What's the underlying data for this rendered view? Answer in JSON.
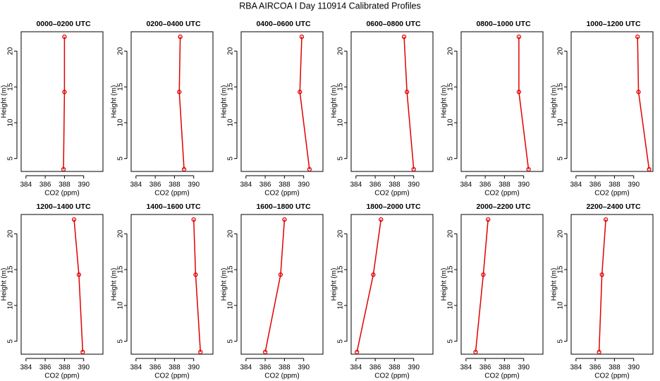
{
  "title": "RBA AIRCOA I  Day 110914  Calibrated Profiles",
  "chart_data": [
    {
      "type": "line",
      "title": "0000–0200 UTC",
      "xlabel": "CO2 (ppm)",
      "ylabel": "Height (m)",
      "color": "#e00000",
      "x": [
        387.9,
        388.0,
        388.0
      ],
      "y": [
        3.5,
        14.3,
        22.0
      ],
      "xlim": [
        383.5,
        392
      ],
      "ylim": [
        3.2,
        22.7
      ],
      "xticks": [
        384,
        386,
        388,
        390
      ],
      "yticks": [
        5,
        10,
        15,
        20
      ]
    },
    {
      "type": "line",
      "title": "0200–0400 UTC",
      "xlabel": "CO2 (ppm)",
      "ylabel": "Height (m)",
      "color": "#e00000",
      "x": [
        389.0,
        388.5,
        388.6
      ],
      "y": [
        3.5,
        14.3,
        22.0
      ],
      "xlim": [
        383.5,
        392
      ],
      "ylim": [
        3.2,
        22.7
      ],
      "xticks": [
        384,
        386,
        388,
        390
      ],
      "yticks": [
        5,
        10,
        15,
        20
      ]
    },
    {
      "type": "line",
      "title": "0400–0600 UTC",
      "xlabel": "CO2 (ppm)",
      "ylabel": "Height (m)",
      "color": "#e00000",
      "x": [
        390.6,
        389.6,
        389.8
      ],
      "y": [
        3.5,
        14.3,
        22.0
      ],
      "xlim": [
        383.5,
        392
      ],
      "ylim": [
        3.2,
        22.7
      ],
      "xticks": [
        384,
        386,
        388,
        390
      ],
      "yticks": [
        5,
        10,
        15,
        20
      ]
    },
    {
      "type": "line",
      "title": "0600–0800 UTC",
      "xlabel": "CO2 (ppm)",
      "ylabel": "Height (m)",
      "color": "#e00000",
      "x": [
        390.0,
        389.3,
        389.0
      ],
      "y": [
        3.5,
        14.3,
        22.0
      ],
      "xlim": [
        383.5,
        392
      ],
      "ylim": [
        3.2,
        22.7
      ],
      "xticks": [
        384,
        386,
        388,
        390
      ],
      "yticks": [
        5,
        10,
        15,
        20
      ]
    },
    {
      "type": "line",
      "title": "0800–1000 UTC",
      "xlabel": "CO2 (ppm)",
      "ylabel": "Height (m)",
      "color": "#e00000",
      "x": [
        390.5,
        389.5,
        389.5
      ],
      "y": [
        3.5,
        14.3,
        22.0
      ],
      "xlim": [
        383.5,
        392
      ],
      "ylim": [
        3.2,
        22.7
      ],
      "xticks": [
        384,
        386,
        388,
        390
      ],
      "yticks": [
        5,
        10,
        15,
        20
      ]
    },
    {
      "type": "line",
      "title": "1000–1200 UTC",
      "xlabel": "CO2 (ppm)",
      "ylabel": "Height (m)",
      "color": "#e00000",
      "x": [
        391.6,
        390.5,
        390.4
      ],
      "y": [
        3.5,
        14.3,
        22.0
      ],
      "xlim": [
        383.5,
        392
      ],
      "ylim": [
        3.2,
        22.7
      ],
      "xticks": [
        384,
        386,
        388,
        390
      ],
      "yticks": [
        5,
        10,
        15,
        20
      ]
    },
    {
      "type": "line",
      "title": "1200–1400 UTC",
      "xlabel": "CO2 (ppm)",
      "ylabel": "Height (m)",
      "color": "#e00000",
      "x": [
        389.9,
        389.5,
        389.0
      ],
      "y": [
        3.5,
        14.3,
        22.0
      ],
      "xlim": [
        383.5,
        392
      ],
      "ylim": [
        3.2,
        22.7
      ],
      "xticks": [
        384,
        386,
        388,
        390
      ],
      "yticks": [
        5,
        10,
        15,
        20
      ]
    },
    {
      "type": "line",
      "title": "1400–1600 UTC",
      "xlabel": "CO2 (ppm)",
      "ylabel": "Height (m)",
      "color": "#e00000",
      "x": [
        390.7,
        390.2,
        390.0
      ],
      "y": [
        3.5,
        14.3,
        22.0
      ],
      "xlim": [
        383.5,
        392
      ],
      "ylim": [
        3.2,
        22.7
      ],
      "xticks": [
        384,
        386,
        388,
        390
      ],
      "yticks": [
        5,
        10,
        15,
        20
      ]
    },
    {
      "type": "line",
      "title": "1600–1800 UTC",
      "xlabel": "CO2 (ppm)",
      "ylabel": "Height (m)",
      "color": "#e00000",
      "x": [
        386.0,
        387.6,
        388.0
      ],
      "y": [
        3.5,
        14.3,
        22.0
      ],
      "xlim": [
        383.5,
        392
      ],
      "ylim": [
        3.2,
        22.7
      ],
      "xticks": [
        384,
        386,
        388,
        390
      ],
      "yticks": [
        5,
        10,
        15,
        20
      ]
    },
    {
      "type": "line",
      "title": "1800–2000 UTC",
      "xlabel": "CO2 (ppm)",
      "ylabel": "Height (m)",
      "color": "#e00000",
      "x": [
        384.1,
        385.8,
        386.6
      ],
      "y": [
        3.5,
        14.3,
        22.0
      ],
      "xlim": [
        383.5,
        392
      ],
      "ylim": [
        3.2,
        22.7
      ],
      "xticks": [
        384,
        386,
        388,
        390
      ],
      "yticks": [
        5,
        10,
        15,
        20
      ]
    },
    {
      "type": "line",
      "title": "2000–2200 UTC",
      "xlabel": "CO2 (ppm)",
      "ylabel": "Height (m)",
      "color": "#e00000",
      "x": [
        385.0,
        385.8,
        386.3
      ],
      "y": [
        3.5,
        14.3,
        22.0
      ],
      "xlim": [
        383.5,
        392
      ],
      "ylim": [
        3.2,
        22.7
      ],
      "xticks": [
        384,
        386,
        388,
        390
      ],
      "yticks": [
        5,
        10,
        15,
        20
      ]
    },
    {
      "type": "line",
      "title": "2200–2400 UTC",
      "xlabel": "CO2 (ppm)",
      "ylabel": "Height (m)",
      "color": "#e00000",
      "x": [
        386.4,
        386.7,
        387.1
      ],
      "y": [
        3.5,
        14.3,
        22.0
      ],
      "xlim": [
        383.5,
        392
      ],
      "ylim": [
        3.2,
        22.7
      ],
      "xticks": [
        384,
        386,
        388,
        390
      ],
      "yticks": [
        5,
        10,
        15,
        20
      ]
    }
  ]
}
